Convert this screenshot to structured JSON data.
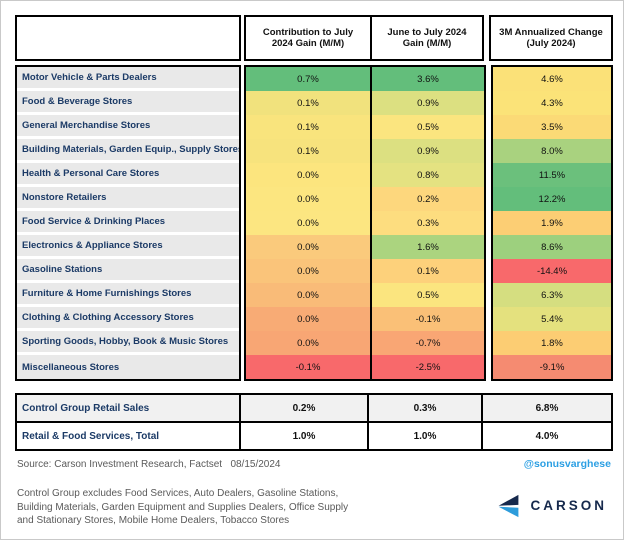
{
  "table": {
    "columns": [
      "Contribution to July 2024 Gain (M/M)",
      "June to July 2024 Gain (M/M)",
      "3M Annualized Change (July 2024)"
    ],
    "rows": [
      {
        "label": "Motor Vehicle & Parts Dealers",
        "values": [
          "0.7%",
          "3.6%",
          "4.6%"
        ],
        "colors": [
          "#63BE7B",
          "#63BE7B",
          "#FBE178"
        ]
      },
      {
        "label": "Food & Beverage Stores",
        "values": [
          "0.1%",
          "0.9%",
          "4.3%"
        ],
        "colors": [
          "#F1E27D",
          "#DCE081",
          "#FBE378"
        ]
      },
      {
        "label": "General Merchandise Stores",
        "values": [
          "0.1%",
          "0.5%",
          "3.5%"
        ],
        "colors": [
          "#F9E47D",
          "#FBE57F",
          "#FBDA76"
        ]
      },
      {
        "label": "Building Materials, Garden Equip., Supply Stores",
        "values": [
          "0.1%",
          "0.9%",
          "8.0%"
        ],
        "colors": [
          "#F7E37D",
          "#DCE081",
          "#A9D27F"
        ]
      },
      {
        "label": "Health & Personal Care Stores",
        "values": [
          "0.0%",
          "0.8%",
          "11.5%"
        ],
        "colors": [
          "#FCE57E",
          "#E4E281",
          "#6BC07C"
        ]
      },
      {
        "label": "Nonstore Retailers",
        "values": [
          "0.0%",
          "0.2%",
          "12.2%"
        ],
        "colors": [
          "#FCE680",
          "#FDD77D",
          "#63BE7B"
        ]
      },
      {
        "label": "Food Service & Drinking Places",
        "values": [
          "0.0%",
          "0.3%",
          "1.9%"
        ],
        "colors": [
          "#FCE681",
          "#FDDD7F",
          "#FCCE74"
        ]
      },
      {
        "label": "Electronics & Appliance Stores",
        "values": [
          "0.0%",
          "1.6%",
          "8.6%"
        ],
        "colors": [
          "#FACA7C",
          "#ABD47F",
          "#9DD07E"
        ]
      },
      {
        "label": "Gasoline Stations",
        "values": [
          "0.0%",
          "0.1%",
          "-14.4%"
        ],
        "colors": [
          "#FAC47A",
          "#FDD17B",
          "#F8696B"
        ]
      },
      {
        "label": "Furniture & Home Furnishings Stores",
        "values": [
          "0.0%",
          "0.5%",
          "6.3%"
        ],
        "colors": [
          "#F9BB78",
          "#FBE57F",
          "#D5DE80"
        ]
      },
      {
        "label": "Clothing & Clothing Accessory Stores",
        "values": [
          "0.0%",
          "-0.1%",
          "5.4%"
        ],
        "colors": [
          "#F8AB75",
          "#FAC077",
          "#E4E17E"
        ]
      },
      {
        "label": "Sporting Goods, Hobby, Book & Music Stores",
        "values": [
          "0.0%",
          "-0.7%",
          "1.8%"
        ],
        "colors": [
          "#F8A674",
          "#F9A674",
          "#FCCD73"
        ]
      },
      {
        "label": "Miscellaneous Stores",
        "values": [
          "-0.1%",
          "-2.5%",
          "-9.1%"
        ],
        "colors": [
          "#F8696B",
          "#F8696B",
          "#F58B71"
        ]
      }
    ],
    "summary_rows": [
      {
        "label": "Control Group Retail Sales",
        "values": [
          "0.2%",
          "0.3%",
          "6.8%"
        ]
      },
      {
        "label": "Retail & Food Services, Total",
        "values": [
          "1.0%",
          "1.0%",
          "4.0%"
        ]
      }
    ]
  },
  "chart_data": {
    "type": "heatmap",
    "title": "",
    "unit": "percent",
    "columns": [
      "Contribution to July 2024 Gain (M/M)",
      "June to July 2024 Gain (M/M)",
      "3M Annualized Change (July 2024)"
    ],
    "categories": [
      "Motor Vehicle & Parts Dealers",
      "Food & Beverage Stores",
      "General Merchandise Stores",
      "Building Materials, Garden Equip., Supply Stores",
      "Health & Personal Care Stores",
      "Nonstore Retailers",
      "Food Service & Drinking Places",
      "Electronics & Appliance Stores",
      "Gasoline Stations",
      "Furniture & Home Furnishings Stores",
      "Clothing & Clothing Accessory Stores",
      "Sporting Goods, Hobby, Book & Music Stores",
      "Miscellaneous Stores"
    ],
    "values": [
      [
        0.7,
        3.6,
        4.6
      ],
      [
        0.1,
        0.9,
        4.3
      ],
      [
        0.1,
        0.5,
        3.5
      ],
      [
        0.1,
        0.9,
        8.0
      ],
      [
        0.0,
        0.8,
        11.5
      ],
      [
        0.0,
        0.2,
        12.2
      ],
      [
        0.0,
        0.3,
        1.9
      ],
      [
        0.0,
        1.6,
        8.6
      ],
      [
        0.0,
        0.1,
        -14.4
      ],
      [
        0.0,
        0.5,
        6.3
      ],
      [
        0.0,
        -0.1,
        5.4
      ],
      [
        0.0,
        -0.7,
        1.8
      ],
      [
        -0.1,
        -2.5,
        -9.1
      ]
    ],
    "summary": [
      {
        "label": "Control Group Retail Sales",
        "values": [
          0.2,
          0.3,
          6.8
        ]
      },
      {
        "label": "Retail & Food Services, Total",
        "values": [
          1.0,
          1.0,
          4.0
        ]
      }
    ],
    "color_scale": {
      "min": "#F8696B",
      "mid": "#FFEB84",
      "max": "#63BE7B"
    }
  },
  "footer": {
    "source": "Source: Carson Investment Research, Factset",
    "date": "08/15/2024",
    "handle": "@sonusvarghese",
    "note_line1": "Control Group excludes Food Services, Auto Dealers, Gasoline Stations,",
    "note_line2": "Building Materials, Garden Equipment and Supplies Dealers, Office Supply",
    "note_line3": "and Stationary Stores, Mobile Home Dealers, Tobacco Stores",
    "brand": "CARSON"
  },
  "colors": {
    "label_text": "#1b3a66",
    "handle_blue": "#2b9fe3",
    "logo_navy": "#16294c",
    "logo_blue": "#2d9cdb",
    "note_gray": "#5a5a5a"
  }
}
